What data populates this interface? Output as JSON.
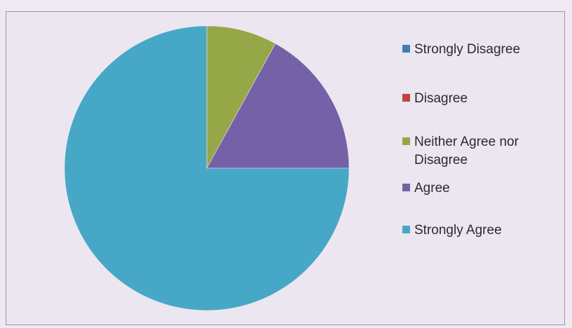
{
  "chart_data": {
    "type": "pie",
    "title": "",
    "categories": [
      "Strongly Disagree",
      "Disagree",
      "Neither Agree nor Disagree",
      "Agree",
      "Strongly Agree"
    ],
    "legend_labels": [
      "Strongly Disagree",
      "Disagree",
      "Neither Agree nor\nDisagree",
      "Agree",
      "Strongly Agree"
    ],
    "values": [
      0,
      0,
      8,
      17,
      75
    ],
    "colors": [
      "#3d7fb6",
      "#c0443f",
      "#95a746",
      "#7561a8",
      "#46a8c6"
    ],
    "start_angle_deg": 0,
    "direction": "clockwise",
    "legend_position": "right"
  }
}
